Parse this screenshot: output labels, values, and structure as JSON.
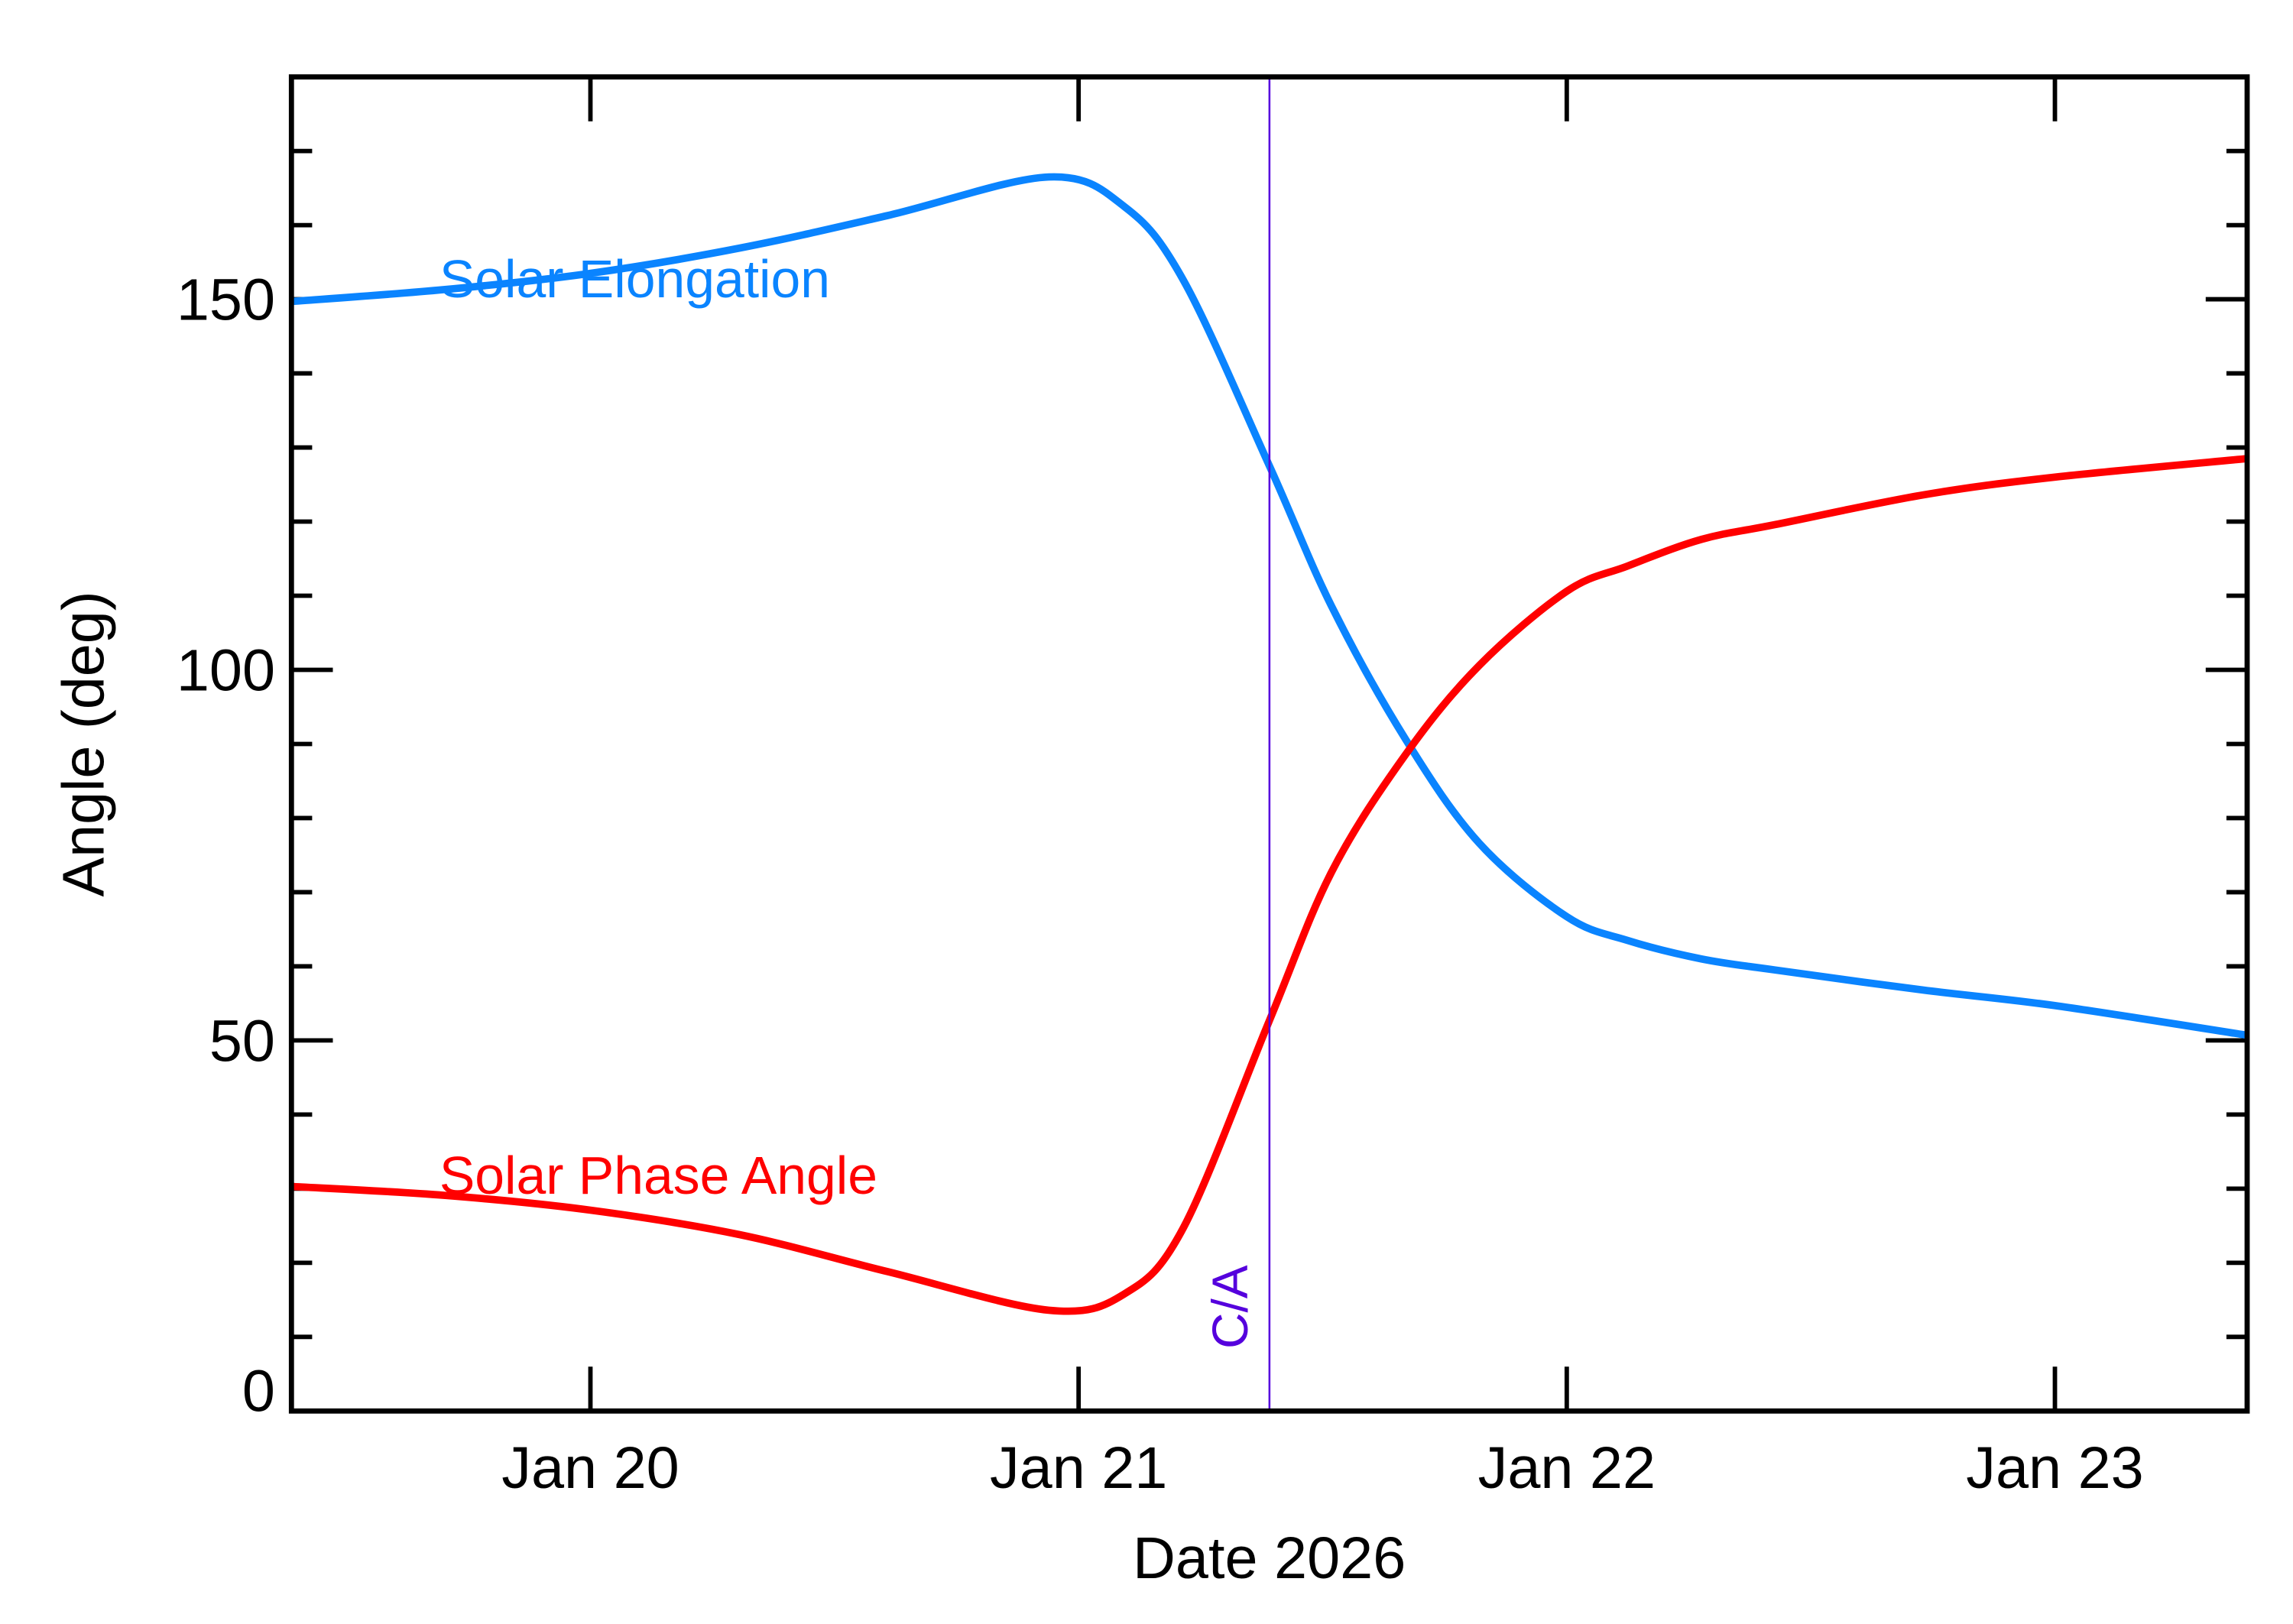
{
  "chart_data": {
    "type": "line",
    "xlabel": "Date 2026",
    "ylabel": "Angle (deg)",
    "xlim": [
      "2026-01-19T09:18",
      "2026-01-23T09:27"
    ],
    "ylim": [
      0,
      180
    ],
    "x_ticks": [
      {
        "date": "2026-01-20T00:00",
        "label": "Jan 20"
      },
      {
        "date": "2026-01-21T00:00",
        "label": "Jan 21"
      },
      {
        "date": "2026-01-22T00:00",
        "label": "Jan 22"
      },
      {
        "date": "2026-01-23T00:00",
        "label": "Jan 23"
      }
    ],
    "y_ticks": [
      0,
      50,
      100,
      150
    ],
    "y_minor_step": 10,
    "grid": false,
    "legend": "inline labels",
    "annotation": {
      "label": "C/A",
      "date": "2026-01-21T09:23",
      "color": "#5500dd"
    },
    "series": [
      {
        "name": "Solar Elongation",
        "color": "#0a84ff",
        "points": [
          [
            "2026-01-19T09:18",
            149.7
          ],
          [
            "2026-01-19T16:48",
            151.3
          ],
          [
            "2026-01-20T00:00",
            153.5
          ],
          [
            "2026-01-20T07:20",
            156.9
          ],
          [
            "2026-01-20T14:37",
            161.3
          ],
          [
            "2026-01-20T22:32",
            166.5
          ],
          [
            "2026-01-21T02:15",
            162.5
          ],
          [
            "2026-01-21T05:10",
            152.5
          ],
          [
            "2026-01-21T09:23",
            127.5
          ],
          [
            "2026-01-21T12:26",
            108.6
          ],
          [
            "2026-01-21T16:05",
            90.6
          ],
          [
            "2026-01-21T19:42",
            76.6
          ],
          [
            "2026-01-22T00:00",
            66.7
          ],
          [
            "2026-01-22T02:59",
            63.5
          ],
          [
            "2026-01-22T06:37",
            61.0
          ],
          [
            "2026-01-22T10:15",
            59.5
          ],
          [
            "2026-01-22T17:31",
            56.8
          ],
          [
            "2026-01-23T00:00",
            54.7
          ],
          [
            "2026-01-23T09:27",
            50.7
          ]
        ]
      },
      {
        "name": "Solar Phase Angle",
        "color": "#ff0000",
        "points": [
          [
            "2026-01-19T09:18",
            30.3
          ],
          [
            "2026-01-19T16:48",
            29.1
          ],
          [
            "2026-01-20T00:00",
            27.1
          ],
          [
            "2026-01-20T07:20",
            23.8
          ],
          [
            "2026-01-20T14:37",
            18.8
          ],
          [
            "2026-01-20T22:32",
            13.6
          ],
          [
            "2026-01-21T02:15",
            15.8
          ],
          [
            "2026-01-21T05:10",
            24.8
          ],
          [
            "2026-01-21T09:23",
            52.7
          ],
          [
            "2026-01-21T12:26",
            72.7
          ],
          [
            "2026-01-21T16:05",
            88.6
          ],
          [
            "2026-01-21T19:42",
            100.6
          ],
          [
            "2026-01-22T00:00",
            110.6
          ],
          [
            "2026-01-22T02:59",
            114.0
          ],
          [
            "2026-01-22T06:37",
            117.6
          ],
          [
            "2026-01-22T10:15",
            119.6
          ],
          [
            "2026-01-22T17:31",
            123.6
          ],
          [
            "2026-01-23T00:00",
            126.0
          ],
          [
            "2026-01-23T09:27",
            128.5
          ]
        ]
      }
    ]
  }
}
